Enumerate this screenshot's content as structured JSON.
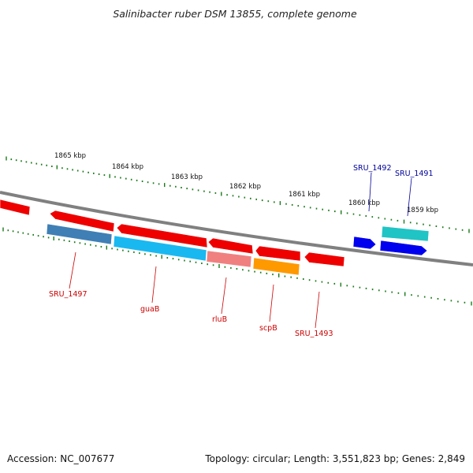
{
  "title": "Salinibacter ruber DSM 13855, complete genome",
  "footer": {
    "accession": "Accession: NC_007677",
    "summary": "Topology: circular; Length: 3,551,823 bp; Genes: 2,849"
  },
  "ruler": {
    "labels": [
      "1865 kbp",
      "1864 kbp",
      "1863 kbp",
      "1862 kbp",
      "1861 kbp",
      "1860 kbp",
      "1859 kbp"
    ]
  },
  "colors": {
    "backbone": "#808080",
    "tick": "#1a7a1a",
    "red_gene": "#ee0000",
    "label_red": "#cc0000",
    "label_blue": "#000099",
    "steelblue": "#3f7fb5",
    "cyan": "#1ab8f0",
    "salmon": "#f08080",
    "orange": "#ff9900",
    "blue": "#0000ee",
    "teal": "#20c4c4"
  },
  "gene_labels": {
    "sru1497": "SRU_1497",
    "guab": "guaB",
    "rlub": "rluB",
    "scpb": "scpB",
    "sru1493": "SRU_1493",
    "sru1492": "SRU_1492",
    "sru1491": "SRU_1491"
  }
}
